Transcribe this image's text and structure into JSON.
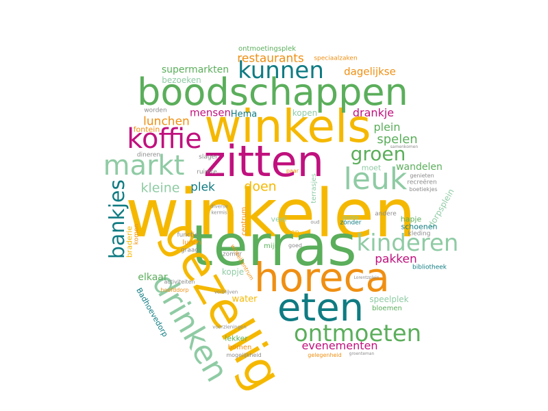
{
  "colors": {
    "yellow": "#F5B800",
    "green": "#5BAE5B",
    "pale_green": "#8FCBA4",
    "magenta": "#C0117E",
    "teal": "#0F7B82",
    "orange": "#EF8F12"
  },
  "words": {
    "winkelen": "winkelen",
    "terras": "terras",
    "gezellig": "gezellig",
    "winkels": "winkels",
    "boodschappen": "boodschappen",
    "zitten": "zitten",
    "horeca": "horeca",
    "eten": "eten",
    "drinken": "drinken",
    "markt": "markt",
    "koffie": "koffie",
    "leuk": "leuk",
    "kunnen": "kunnen",
    "kinderen": "kinderen",
    "ontmoeten": "ontmoeten",
    "groen": "groen",
    "bankjes": "bankjes",
    "restaurants": "restaurants",
    "supermarkten": "supermarkten",
    "dagelijkse": "dagelijkse",
    "bezoeken": "bezoeken",
    "ontmoetingsplek": "ontmoetingsplek",
    "speciaalzaken": "speciaalzaken",
    "mensen": "mensen",
    "hema": "Hema",
    "kopen": "kopen",
    "drankje": "drankje",
    "lunchen": "lunchen",
    "plein": "plein",
    "spelen": "spelen",
    "fontein": "fontein",
    "worden": "worden",
    "dineren": "dineren",
    "kleine": "kleine",
    "plek": "plek",
    "doen": "doen",
    "wandelen": "wandelen",
    "moet": "moet",
    "slager": "slager",
    "ruimte": "ruimte",
    "genieten": "genieten",
    "recreeren": "recreëren",
    "boetiekjes": "boetiekjes",
    "hapje": "hapje",
    "dorpsplein": "dorpsplein",
    "schoenen": "schoenen",
    "kleding": "kleding",
    "andere": "andere",
    "pakken": "pakken",
    "bibliotheek": "bibliotheek",
    "braderie": "braderie",
    "komen": "komen",
    "functie": "functie",
    "lunch": "lunch",
    "graag": "graag",
    "elkaar": "elkaar",
    "kopje": "kopje",
    "activiteiten": "activiteiten",
    "hoofddorp": "hoofddorp",
    "badhoevedorp": "Badhoevedorp",
    "water": "water",
    "speelplek": "speelplek",
    "bloemen": "bloemen",
    "evenementen": "evenementen",
    "lekker": "lekker",
    "bomen": "bomen",
    "mogelijkheid": "mogelijkheid",
    "gelegenheid": "gelegenheid",
    "centrum": "centrum",
    "zon": "zon",
    "zonder": "zonder",
    "mijn": "mijn",
    "veel": "veel",
    "zomer": "zomer",
    "goed": "goed",
    "diverse": "diverse",
    "kermis": "kermis",
    "groenteman": "groenteman",
    "lorentzplein": "Lorentzplein",
    "samenkomen": "samenkomen",
    "verblijven": "verblijven",
    "voorzieningen": "voorzieningen",
    "grote": "grote",
    "oud": "oud",
    "paar": "paar",
    "terrasjes": "terrasjes",
    "winkelcentrum": "winkelcentrum"
  }
}
